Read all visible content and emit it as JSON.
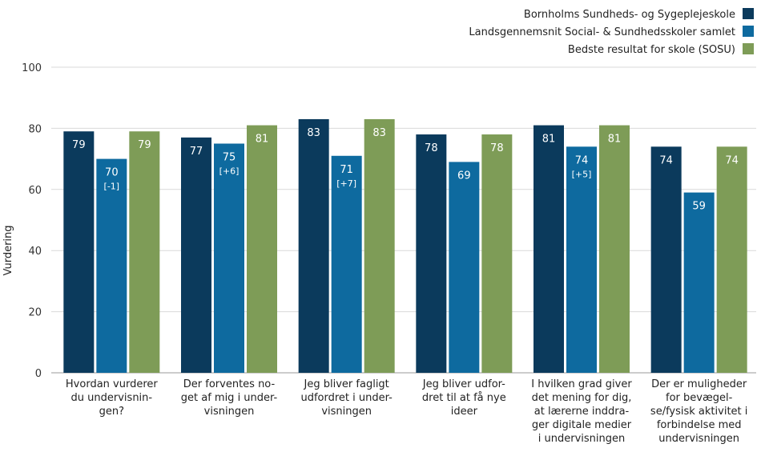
{
  "chart_data": {
    "type": "bar",
    "title": "",
    "xlabel": "",
    "ylabel": "Vurdering",
    "ylim": [
      0,
      100
    ],
    "yticks": [
      0,
      20,
      40,
      60,
      80,
      100
    ],
    "grid": true,
    "legend_position": "top-right",
    "categories": [
      [
        "Hvordan vurderer",
        "du undervisnin-",
        "gen?"
      ],
      [
        "Der forventes no-",
        "get af mig i under-",
        "visningen"
      ],
      [
        "Jeg bliver fagligt",
        "udfordret i under-",
        "visningen"
      ],
      [
        "Jeg bliver udfor-",
        "dret til at få nye",
        "ideer"
      ],
      [
        "I hvilken grad giver",
        "det mening for dig,",
        "at lærerne inddra-",
        "ger digitale medier",
        "i undervisningen"
      ],
      [
        "Der er muligheder",
        "for bevægel-",
        "se/fysisk aktivitet i",
        "forbindelse med",
        "undervisningen"
      ]
    ],
    "series": [
      {
        "name": "Bornholms Sundheds- og Sygeplejeskole",
        "color": "#0b3a5c",
        "values": [
          79,
          77,
          83,
          78,
          81,
          74
        ],
        "diff_labels": [
          "",
          "",
          "",
          "",
          "",
          ""
        ]
      },
      {
        "name": "Landsgennemsnit Social- & Sundhedsskoler samlet",
        "color": "#0e6a9f",
        "values": [
          70,
          75,
          71,
          69,
          74,
          59
        ],
        "diff_labels": [
          "[-1]",
          "[+6]",
          "[+7]",
          "",
          "[+5]",
          ""
        ]
      },
      {
        "name": "Bedste resultat for skole (SOSU)",
        "color": "#7e9c57",
        "values": [
          79,
          81,
          83,
          78,
          81,
          74
        ],
        "diff_labels": [
          "",
          "",
          "",
          "",
          "",
          ""
        ]
      }
    ]
  }
}
